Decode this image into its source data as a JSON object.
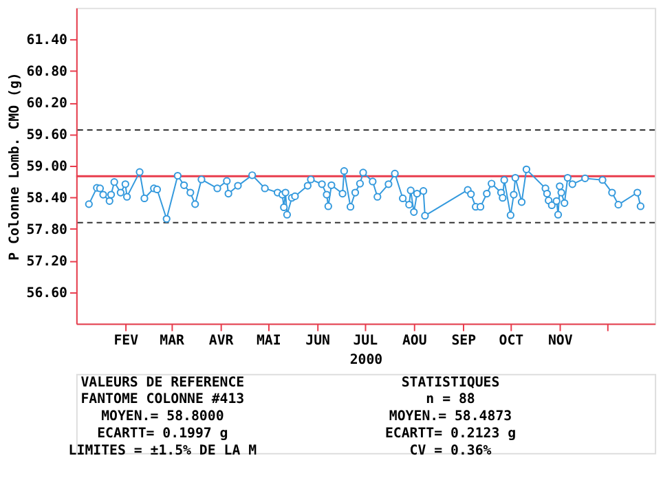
{
  "chart_data": {
    "type": "line",
    "ylabel": "P Colonne Lomb. CMO (g)",
    "xlabel": "2000",
    "x": [
      "2000-01-09",
      "2000-01-14",
      "2000-01-16",
      "2000-01-18",
      "2000-01-22",
      "2000-01-23",
      "2000-01-25",
      "2000-01-29",
      "2000-02-01",
      "2000-02-02",
      "2000-02-10",
      "2000-02-13",
      "2000-02-19",
      "2000-02-21",
      "2000-02-27",
      "2000-03-05",
      "2000-03-09",
      "2000-03-13",
      "2000-03-16",
      "2000-03-20",
      "2000-03-30",
      "2000-04-05",
      "2000-04-06",
      "2000-04-12",
      "2000-04-21",
      "2000-04-29",
      "2000-05-07",
      "2000-05-10",
      "2000-05-11",
      "2000-05-12",
      "2000-05-13",
      "2000-05-16",
      "2000-05-18",
      "2000-05-26",
      "2000-05-28",
      "2000-06-04",
      "2000-06-07",
      "2000-06-08",
      "2000-06-10",
      "2000-06-17",
      "2000-06-18",
      "2000-06-22",
      "2000-06-25",
      "2000-06-28",
      "2000-06-30",
      "2000-07-06",
      "2000-07-09",
      "2000-07-16",
      "2000-07-20",
      "2000-07-25",
      "2000-07-29",
      "2000-07-30",
      "2000-08-01",
      "2000-08-03",
      "2000-08-07",
      "2000-08-08",
      "2000-09-04",
      "2000-09-06",
      "2000-09-09",
      "2000-09-12",
      "2000-09-16",
      "2000-09-19",
      "2000-09-25",
      "2000-09-26",
      "2000-09-27",
      "2000-10-01",
      "2000-10-03",
      "2000-10-04",
      "2000-10-08",
      "2000-10-11",
      "2000-10-23",
      "2000-10-24",
      "2000-10-25",
      "2000-10-27",
      "2000-10-30",
      "2000-10-31",
      "2000-11-01",
      "2000-11-02",
      "2000-11-04",
      "2000-11-06",
      "2000-11-09",
      "2000-11-17",
      "2000-11-28",
      "2000-12-04",
      "2000-12-08",
      "2000-12-20",
      "2000-12-22"
    ],
    "series": [
      {
        "color": "#3399dd",
        "values": [
          58.27,
          58.58,
          58.57,
          58.45,
          58.33,
          58.45,
          58.69,
          58.49,
          58.65,
          58.41,
          58.88,
          58.38,
          58.57,
          58.55,
          57.99,
          58.81,
          58.63,
          58.49,
          58.27,
          58.74,
          58.57,
          58.71,
          58.47,
          58.62,
          58.82,
          58.57,
          58.49,
          58.45,
          58.21,
          58.49,
          58.07,
          58.39,
          58.42,
          58.62,
          58.74,
          58.65,
          58.45,
          58.23,
          58.63,
          58.47,
          58.9,
          58.22,
          58.49,
          58.66,
          58.87,
          58.7,
          58.41,
          58.65,
          58.85,
          58.38,
          58.26,
          58.53,
          58.12,
          58.47,
          58.52,
          58.05,
          58.54,
          58.46,
          58.22,
          58.22,
          58.47,
          58.66,
          58.49,
          58.39,
          58.73,
          58.06,
          58.45,
          58.77,
          58.31,
          58.93,
          58.57,
          58.47,
          58.34,
          58.25,
          58.33,
          58.07,
          58.61,
          58.49,
          58.29,
          58.77,
          58.65,
          58.76,
          58.73,
          58.49,
          58.26,
          58.49,
          58.23
        ]
      }
    ],
    "marker": "circle",
    "grid": false,
    "xlim": [
      "2000-01-01",
      "2000-12-31"
    ],
    "xticks": [
      {
        "value": "2000-02-01",
        "label": "FEV"
      },
      {
        "value": "2000-03-01",
        "label": "MAR"
      },
      {
        "value": "2000-04-01",
        "label": "AVR"
      },
      {
        "value": "2000-05-01",
        "label": "MAI"
      },
      {
        "value": "2000-06-01",
        "label": "JUN"
      },
      {
        "value": "2000-07-01",
        "label": "JUL"
      },
      {
        "value": "2000-08-01",
        "label": "AOU"
      },
      {
        "value": "2000-09-01",
        "label": "SEP"
      },
      {
        "value": "2000-10-01",
        "label": "OCT"
      },
      {
        "value": "2000-11-01",
        "label": "NOV"
      },
      {
        "value": "2000-12-01",
        "label": null
      }
    ],
    "ylim": [
      56.0,
      62.0
    ],
    "yticks": [
      {
        "value": 56.6,
        "label": "56.60"
      },
      {
        "value": 57.2,
        "label": "57.20"
      },
      {
        "value": 57.8,
        "label": "57.80"
      },
      {
        "value": 58.4,
        "label": "58.40"
      },
      {
        "value": 59.0,
        "label": "59.00"
      },
      {
        "value": 59.6,
        "label": "59.60"
      },
      {
        "value": 60.2,
        "label": "60.20"
      },
      {
        "value": 60.8,
        "label": "60.80"
      },
      {
        "value": 61.4,
        "label": "61.40"
      }
    ],
    "ref_lines": [
      {
        "axis": "y",
        "value": 58.8,
        "color": "#e83c4c",
        "line_style": "solid"
      },
      {
        "axis": "y",
        "value": 59.68,
        "color": "#333333",
        "line_style": "dashed"
      },
      {
        "axis": "y",
        "value": 57.92,
        "color": "#333333",
        "line_style": "dashed"
      }
    ],
    "annotations": [
      "VALEURS DE REFERENCE",
      "FANTOME COLONNE #413",
      "MOYEN.= 58.8000",
      "ECARTT= 0.1997 g",
      "LIMITES = ±1.5% DE LA M",
      "STATISTIQUES",
      "n = 88",
      "MOYEN.= 58.4873",
      "ECARTT= 0.2123 g",
      "CV = 0.36%"
    ]
  }
}
